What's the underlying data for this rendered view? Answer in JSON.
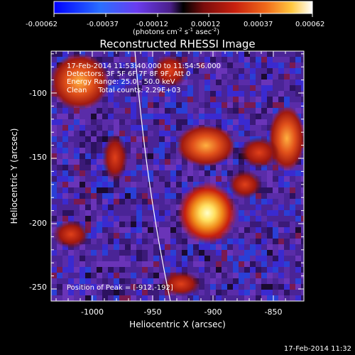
{
  "colorbar": {
    "ticks": [
      "-0.00062",
      "-0.00037",
      "-0.00012",
      "0.00012",
      "0.00037",
      "0.00062"
    ],
    "unit_label_main": "(photons cm",
    "unit_exp1": "-2",
    "unit_mid": " s",
    "unit_exp2": "-1",
    "unit_mid2": " asec",
    "unit_exp3": "-2",
    "unit_close": ")"
  },
  "plot": {
    "title": "Reconstructed RHESSI Image",
    "info_lines": [
      "17-Feb-2014 11:53:40.000 to 11:54:56.000",
      "Detectors: 3F 5F 6F 7F 8F 9F, Att 0",
      "Energy Range: 25.0 - 50.0 keV",
      "Clean     Total counts: 2.29E+03"
    ],
    "peak_label": "Position of Peak = [-912,-192]",
    "xlabel": "Heliocentric X (arcsec)",
    "ylabel": "Heliocentric Y (arcsec)",
    "x_ticks": [
      "-1000",
      "-950",
      "-900",
      "-850"
    ],
    "y_ticks": [
      "-100",
      "-150",
      "-200",
      "-250"
    ]
  },
  "footer": {
    "timestamp": "17-Feb-2014 11:32"
  },
  "colors": {
    "background": "#000000",
    "foreground": "#ffffff",
    "field_purple": "#5a2ca8",
    "field_blue": "#2a3fd6",
    "hot_red": "#c8200e",
    "hot_orange": "#f08a1a",
    "hot_yellow": "#fff27a"
  }
}
